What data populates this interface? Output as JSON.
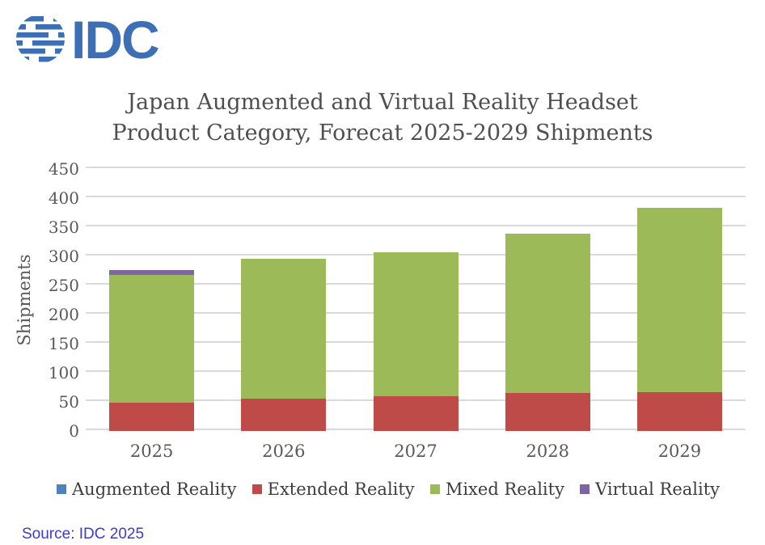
{
  "logo": {
    "text": "IDC",
    "color": "#3d6fb7"
  },
  "title": {
    "line1": "Japan Augmented and Virtual Reality Headset",
    "line2": "Product Category, Forecat 2025-2029 Shipments"
  },
  "source": "Source: IDC 2025",
  "colors": {
    "grid": "#dadada",
    "axis_text": "#595959",
    "title_text": "#4f4f4f",
    "source_text": "#3c3ccb"
  },
  "chart_data": {
    "type": "bar",
    "stacked": true,
    "title": "Japan Augmented and Virtual Reality Headset Product Category, Forecat 2025-2029 Shipments",
    "categories": [
      "2025",
      "2026",
      "2027",
      "2028",
      "2029"
    ],
    "series": [
      {
        "name": "Augmented Reality",
        "color": "#4f81bd",
        "values": [
          0,
          0,
          0,
          0,
          0
        ]
      },
      {
        "name": "Extended Reality",
        "color": "#be4b48",
        "values": [
          48,
          55,
          60,
          65,
          67
        ]
      },
      {
        "name": "Mixed Reality",
        "color": "#9cbb58",
        "values": [
          220,
          241,
          247,
          274,
          316
        ]
      },
      {
        "name": "Virtual Reality",
        "color": "#7c64a5",
        "values": [
          8,
          0,
          0,
          0,
          0
        ]
      }
    ],
    "totals": [
      276,
      296,
      307,
      339,
      383
    ],
    "xlabel": "",
    "ylabel": "Shipments",
    "ylim": [
      0,
      450
    ],
    "ytick_step": 50,
    "grid": true,
    "legend_position": "bottom"
  }
}
